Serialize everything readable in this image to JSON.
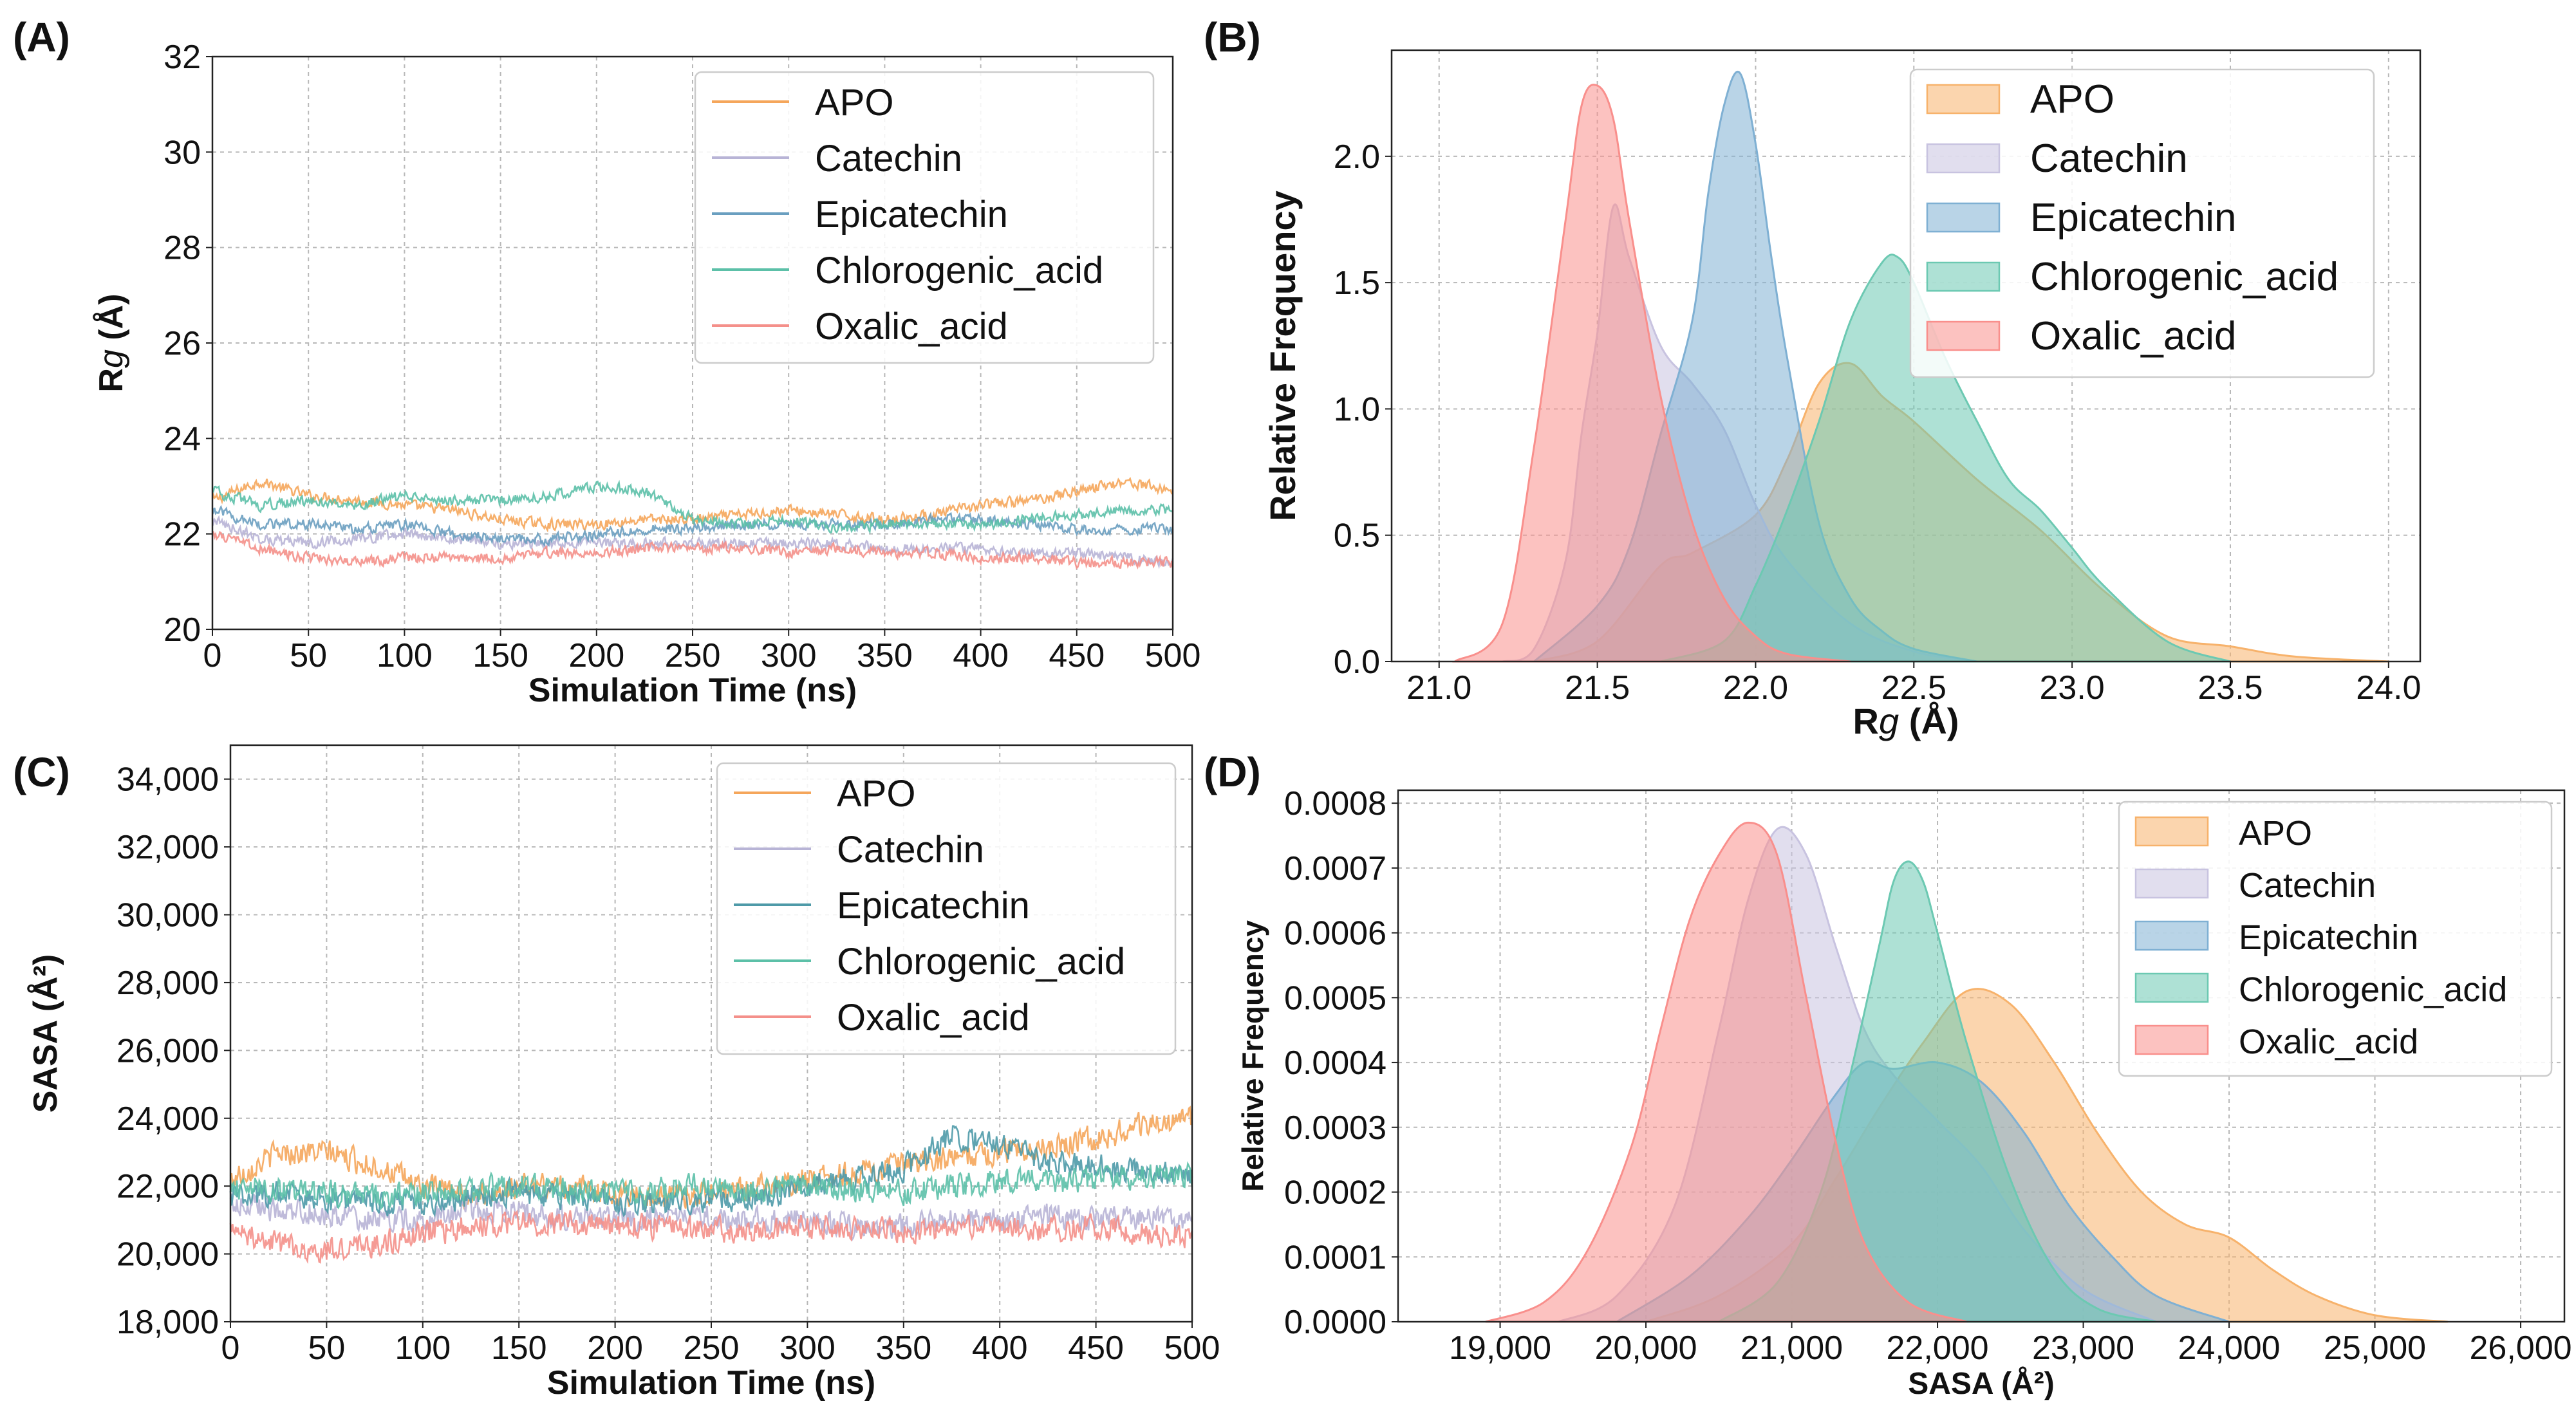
{
  "chart_data": [
    {
      "id": "A",
      "panel_label": "(A)",
      "type": "line",
      "xlabel": "Simulation Time (ns)",
      "ylabel_main": "R",
      "ylabel_italic": "g",
      "ylabel_suffix": " (Å)",
      "xlim": [
        0,
        500
      ],
      "ylim": [
        20,
        32
      ],
      "xticks": [
        0,
        50,
        100,
        150,
        200,
        250,
        300,
        350,
        400,
        450,
        500
      ],
      "yticks": [
        20,
        22,
        24,
        26,
        28,
        30,
        32
      ],
      "xtick_labels": [
        "0",
        "50",
        "100",
        "150",
        "200",
        "250",
        "300",
        "350",
        "400",
        "450",
        "500"
      ],
      "ytick_labels": [
        "20",
        "22",
        "24",
        "26",
        "28",
        "30",
        "32"
      ],
      "grid": true,
      "legend_position": "top-right",
      "series": [
        {
          "name": "APO",
          "color": "#f5a65b",
          "x": [
            0,
            25,
            50,
            75,
            100,
            125,
            150,
            175,
            200,
            225,
            250,
            275,
            300,
            325,
            350,
            375,
            400,
            425,
            450,
            475,
            500
          ],
          "y": [
            22.7,
            23.1,
            22.8,
            22.7,
            22.6,
            22.5,
            22.3,
            22.2,
            22.2,
            22.3,
            22.3,
            22.4,
            22.5,
            22.4,
            22.3,
            22.4,
            22.6,
            22.7,
            22.9,
            23.1,
            22.9
          ]
        },
        {
          "name": "Catechin",
          "color": "#b8b4d6",
          "x": [
            0,
            25,
            50,
            75,
            100,
            125,
            150,
            175,
            200,
            225,
            250,
            275,
            300,
            325,
            350,
            375,
            400,
            425,
            450,
            475,
            500
          ],
          "y": [
            22.3,
            21.9,
            21.8,
            21.9,
            22.0,
            21.9,
            21.8,
            21.8,
            21.8,
            21.8,
            21.8,
            21.8,
            21.8,
            21.8,
            21.7,
            21.7,
            21.7,
            21.6,
            21.6,
            21.5,
            21.4
          ]
        },
        {
          "name": "Epicatechin",
          "color": "#6a9fc0",
          "x": [
            0,
            25,
            50,
            75,
            100,
            125,
            150,
            175,
            200,
            225,
            250,
            275,
            300,
            325,
            350,
            375,
            400,
            425,
            450,
            475,
            500
          ],
          "y": [
            22.5,
            22.2,
            22.2,
            22.1,
            22.2,
            22.0,
            21.9,
            21.9,
            22.0,
            22.1,
            22.1,
            22.2,
            22.2,
            22.2,
            22.2,
            22.3,
            22.3,
            22.2,
            22.1,
            22.1,
            22.1
          ]
        },
        {
          "name": "Chlorogenic_acid",
          "color": "#5cc0a8",
          "x": [
            0,
            25,
            50,
            75,
            100,
            125,
            150,
            175,
            200,
            225,
            250,
            275,
            300,
            325,
            350,
            375,
            400,
            425,
            450,
            475,
            500
          ],
          "y": [
            22.9,
            22.6,
            22.7,
            22.6,
            22.8,
            22.7,
            22.7,
            22.8,
            23.0,
            22.9,
            22.3,
            22.2,
            22.3,
            22.1,
            22.2,
            22.2,
            22.2,
            22.3,
            22.4,
            22.5,
            22.5
          ]
        },
        {
          "name": "Oxalic_acid",
          "color": "#f4908a",
          "x": [
            0,
            25,
            50,
            75,
            100,
            125,
            150,
            175,
            200,
            225,
            250,
            275,
            300,
            325,
            350,
            375,
            400,
            425,
            450,
            475,
            500
          ],
          "y": [
            22.0,
            21.7,
            21.5,
            21.4,
            21.5,
            21.5,
            21.5,
            21.6,
            21.6,
            21.7,
            21.7,
            21.7,
            21.6,
            21.7,
            21.6,
            21.6,
            21.5,
            21.5,
            21.4,
            21.4,
            21.4
          ]
        }
      ]
    },
    {
      "id": "B",
      "panel_label": "(B)",
      "type": "area",
      "xlabel_main": "R",
      "xlabel_italic": "g",
      "xlabel_suffix": " (Å)",
      "ylabel": "Relative Frequency",
      "xlim": [
        20.85,
        24.1
      ],
      "ylim": [
        0,
        2.42
      ],
      "xticks": [
        21.0,
        21.5,
        22.0,
        22.5,
        23.0,
        23.5,
        24.0
      ],
      "yticks": [
        0.0,
        0.5,
        1.0,
        1.5,
        2.0
      ],
      "xtick_labels": [
        "21.0",
        "21.5",
        "22.0",
        "22.5",
        "23.0",
        "23.5",
        "24.0"
      ],
      "ytick_labels": [
        "0.0",
        "0.5",
        "1.0",
        "1.5",
        "2.0"
      ],
      "grid": true,
      "legend_position": "top-right",
      "series": [
        {
          "name": "APO",
          "color": "#f7b26b",
          "x": [
            21.3,
            21.5,
            21.7,
            21.8,
            22.0,
            22.1,
            22.2,
            22.3,
            22.4,
            22.5,
            22.7,
            22.9,
            23.1,
            23.3,
            23.5,
            23.7,
            24.0
          ],
          "y": [
            0.0,
            0.08,
            0.38,
            0.43,
            0.58,
            0.8,
            1.1,
            1.18,
            1.05,
            0.95,
            0.72,
            0.52,
            0.28,
            0.1,
            0.06,
            0.02,
            0.0
          ]
        },
        {
          "name": "Catechin",
          "color": "#c8c3e0",
          "x": [
            21.2,
            21.3,
            21.4,
            21.45,
            21.5,
            21.55,
            21.6,
            21.7,
            21.8,
            21.9,
            22.0,
            22.1,
            22.3,
            22.5,
            22.7
          ],
          "y": [
            0.0,
            0.05,
            0.4,
            0.9,
            1.3,
            1.8,
            1.6,
            1.25,
            1.1,
            0.92,
            0.62,
            0.4,
            0.15,
            0.04,
            0.0
          ]
        },
        {
          "name": "Epicatechin",
          "color": "#7fb0d3",
          "x": [
            21.3,
            21.5,
            21.6,
            21.7,
            21.8,
            21.85,
            21.9,
            21.95,
            22.0,
            22.05,
            22.1,
            22.2,
            22.3,
            22.4,
            22.5,
            22.7
          ],
          "y": [
            0.0,
            0.22,
            0.45,
            0.9,
            1.35,
            1.85,
            2.2,
            2.33,
            2.05,
            1.6,
            1.2,
            0.55,
            0.25,
            0.12,
            0.05,
            0.0
          ]
        },
        {
          "name": "Chlorogenic_acid",
          "color": "#6cc9b2",
          "x": [
            21.7,
            21.9,
            22.0,
            22.1,
            22.2,
            22.3,
            22.4,
            22.45,
            22.5,
            22.6,
            22.7,
            22.8,
            22.9,
            23.0,
            23.1,
            23.3,
            23.5
          ],
          "y": [
            0.0,
            0.08,
            0.3,
            0.6,
            0.95,
            1.35,
            1.58,
            1.6,
            1.5,
            1.2,
            0.95,
            0.72,
            0.6,
            0.45,
            0.3,
            0.08,
            0.0
          ]
        },
        {
          "name": "Oxalic_acid",
          "color": "#f98f8c",
          "x": [
            21.05,
            21.2,
            21.3,
            21.4,
            21.45,
            21.5,
            21.55,
            21.6,
            21.7,
            21.8,
            21.9,
            22.0,
            22.1,
            22.3
          ],
          "y": [
            0.0,
            0.15,
            0.85,
            1.75,
            2.2,
            2.28,
            2.15,
            1.75,
            1.05,
            0.55,
            0.25,
            0.1,
            0.03,
            0.0
          ]
        }
      ]
    },
    {
      "id": "C",
      "panel_label": "(C)",
      "type": "line",
      "xlabel": "Simulation Time (ns)",
      "ylabel": "SASA (Å²)",
      "xlim": [
        0,
        500
      ],
      "ylim": [
        18000,
        35000
      ],
      "xticks": [
        0,
        50,
        100,
        150,
        200,
        250,
        300,
        350,
        400,
        450,
        500
      ],
      "yticks": [
        18000,
        20000,
        22000,
        24000,
        26000,
        28000,
        30000,
        32000,
        34000
      ],
      "xtick_labels": [
        "0",
        "50",
        "100",
        "150",
        "200",
        "250",
        "300",
        "350",
        "400",
        "450",
        "500"
      ],
      "ytick_labels": [
        "18,000",
        "20,000",
        "22,000",
        "24,000",
        "26,000",
        "28,000",
        "30,000",
        "32,000",
        "34,000"
      ],
      "grid": true,
      "legend_position": "top-right",
      "series": [
        {
          "name": "APO",
          "color": "#f5a65b",
          "x": [
            0,
            25,
            50,
            75,
            100,
            125,
            150,
            175,
            200,
            225,
            250,
            275,
            300,
            325,
            350,
            375,
            400,
            425,
            450,
            475,
            500
          ],
          "y": [
            22200,
            23000,
            23000,
            22600,
            22000,
            21700,
            22000,
            22000,
            21800,
            21700,
            21800,
            22000,
            22200,
            22400,
            22600,
            22800,
            23000,
            23200,
            23400,
            23800,
            24000
          ]
        },
        {
          "name": "Catechin",
          "color": "#b8b4d6",
          "x": [
            0,
            25,
            50,
            75,
            100,
            125,
            150,
            175,
            200,
            225,
            250,
            275,
            300,
            325,
            350,
            375,
            400,
            425,
            450,
            475,
            500
          ],
          "y": [
            21500,
            21300,
            21200,
            21000,
            21000,
            21300,
            21200,
            21000,
            21000,
            21100,
            21100,
            21000,
            21000,
            20800,
            20800,
            21000,
            21000,
            21100,
            21000,
            21100,
            21000
          ]
        },
        {
          "name": "Epicatechin",
          "color": "#4e9aa8",
          "x": [
            0,
            25,
            50,
            75,
            100,
            125,
            150,
            175,
            200,
            225,
            250,
            275,
            300,
            325,
            350,
            375,
            400,
            425,
            450,
            475,
            500
          ],
          "y": [
            21700,
            21800,
            21600,
            21500,
            21500,
            21700,
            21800,
            21700,
            21500,
            21500,
            21600,
            21700,
            22000,
            22200,
            22500,
            23500,
            23200,
            22700,
            22600,
            22400,
            22300
          ]
        },
        {
          "name": "Chlorogenic_acid",
          "color": "#5cc0a8",
          "x": [
            0,
            25,
            50,
            75,
            100,
            125,
            150,
            175,
            200,
            225,
            250,
            275,
            300,
            325,
            350,
            375,
            400,
            425,
            450,
            475,
            500
          ],
          "y": [
            22000,
            21900,
            21800,
            21700,
            21800,
            21900,
            22000,
            21900,
            21800,
            21900,
            22000,
            21900,
            22000,
            21900,
            21800,
            22000,
            22200,
            22100,
            22200,
            22300,
            22300
          ]
        },
        {
          "name": "Oxalic_acid",
          "color": "#f4908a",
          "x": [
            0,
            25,
            50,
            75,
            100,
            125,
            150,
            175,
            200,
            225,
            250,
            275,
            300,
            325,
            350,
            375,
            400,
            425,
            450,
            475,
            500
          ],
          "y": [
            20700,
            20300,
            20100,
            20300,
            20600,
            20800,
            20900,
            20900,
            20800,
            20800,
            20700,
            20700,
            20800,
            20800,
            20700,
            20700,
            20800,
            20700,
            20800,
            20600,
            20500
          ]
        }
      ]
    },
    {
      "id": "D",
      "panel_label": "(D)",
      "type": "area",
      "xlabel": "SASA (Å²)",
      "ylabel": "Relative Frequency",
      "xlim": [
        18300,
        26300
      ],
      "ylim": [
        0,
        0.00082
      ],
      "xticks": [
        19000,
        20000,
        21000,
        22000,
        23000,
        24000,
        25000,
        26000
      ],
      "yticks": [
        0.0,
        0.0001,
        0.0002,
        0.0003,
        0.0004,
        0.0005,
        0.0006,
        0.0007,
        0.0008
      ],
      "xtick_labels": [
        "19,000",
        "20,000",
        "21,000",
        "22,000",
        "23,000",
        "24,000",
        "25,000",
        "26,000"
      ],
      "ytick_labels": [
        "0.0000",
        "0.0001",
        "0.0002",
        "0.0003",
        "0.0004",
        "0.0005",
        "0.0006",
        "0.0007",
        "0.0008"
      ],
      "grid": true,
      "legend_position": "top-right",
      "series": [
        {
          "name": "APO",
          "color": "#f7b26b",
          "x": [
            20000,
            20500,
            21000,
            21300,
            21600,
            21900,
            22200,
            22500,
            22800,
            23100,
            23400,
            23700,
            24000,
            24300,
            24600,
            25000,
            25500
          ],
          "y": [
            0.0,
            4e-05,
            0.00012,
            0.00022,
            0.00033,
            0.00043,
            0.00051,
            0.00049,
            0.0004,
            0.00029,
            0.0002,
            0.00015,
            0.00013,
            8e-05,
            4e-05,
            1e-05,
            0.0
          ]
        },
        {
          "name": "Catechin",
          "color": "#c8c3e0",
          "x": [
            19400,
            19800,
            20200,
            20500,
            20700,
            20900,
            21100,
            21300,
            21500,
            21700,
            22000,
            22300,
            22600,
            23000,
            23500
          ],
          "y": [
            0.0,
            4e-05,
            0.00018,
            0.00045,
            0.00065,
            0.00076,
            0.00072,
            0.00058,
            0.00045,
            0.00038,
            0.00031,
            0.00024,
            0.00014,
            5e-05,
            0.0
          ]
        },
        {
          "name": "Epicatechin",
          "color": "#7fb0d3",
          "x": [
            19800,
            20300,
            20700,
            21000,
            21300,
            21500,
            21700,
            22000,
            22300,
            22600,
            22900,
            23200,
            23500,
            24000
          ],
          "y": [
            0.0,
            7e-05,
            0.00016,
            0.00025,
            0.00035,
            0.0004,
            0.00039,
            0.0004,
            0.00037,
            0.00029,
            0.00018,
            0.0001,
            4e-05,
            0.0
          ]
        },
        {
          "name": "Chlorogenic_acid",
          "color": "#6cc9b2",
          "x": [
            20500,
            20900,
            21200,
            21400,
            21600,
            21700,
            21800,
            21900,
            22000,
            22200,
            22500,
            22800,
            23100,
            23500
          ],
          "y": [
            0.0,
            6e-05,
            0.0002,
            0.00038,
            0.00058,
            0.00068,
            0.00071,
            0.00068,
            0.0006,
            0.00043,
            0.00022,
            8e-05,
            2e-05,
            0.0
          ]
        },
        {
          "name": "Oxalic_acid",
          "color": "#f98f8c",
          "x": [
            18900,
            19300,
            19600,
            19900,
            20100,
            20300,
            20500,
            20700,
            20900,
            21100,
            21300,
            21500,
            21800,
            22200
          ],
          "y": [
            0.0,
            3e-05,
            0.00011,
            0.00027,
            0.00045,
            0.00062,
            0.00072,
            0.00077,
            0.00072,
            0.0005,
            0.00028,
            0.00012,
            3e-05,
            0.0
          ]
        }
      ]
    }
  ]
}
